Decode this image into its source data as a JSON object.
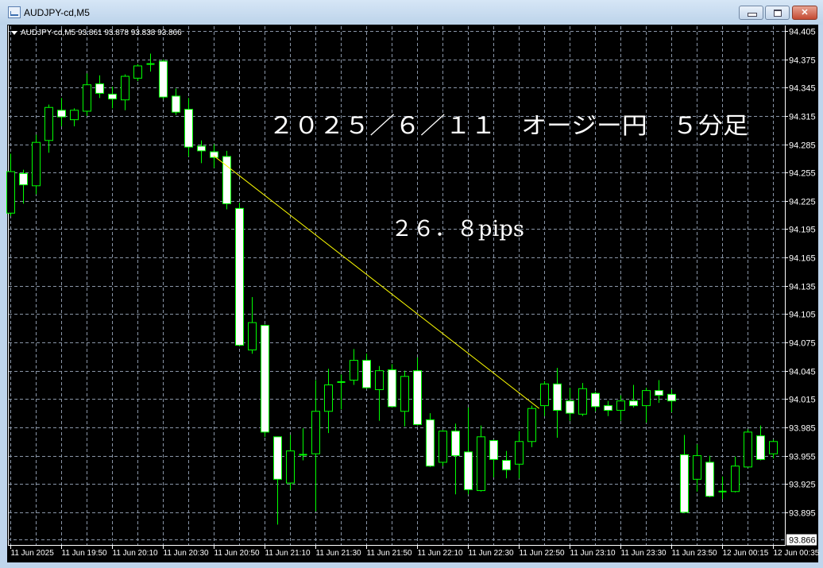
{
  "window": {
    "title": "AUDJPY-cd,M5",
    "icon": "chart-window-icon",
    "buttons": {
      "minimize": "minimize-icon",
      "maximize": "maximize-icon",
      "close": "close-icon"
    }
  },
  "colors": {
    "background": "#000000",
    "grid": "#8a96a8",
    "candle_outline": "#00ff00",
    "bull_body": "#000000",
    "bear_body": "#ffffff",
    "trendline": "#ffff00",
    "text": "#ffffff"
  },
  "info_line": {
    "symbol": "AUDJPY-cd,M5",
    "ohlc": "93.861 93.878 93.838 93.866"
  },
  "annotations": {
    "title": "２０２５／６／１１　オージー円　５分足",
    "pips": "２６．８pips"
  },
  "chart_data": {
    "type": "candlestick",
    "symbol": "AUDJPY-cd",
    "timeframe": "M5",
    "grid": true,
    "ylim": [
      93.866,
      94.405
    ],
    "y_ticks": [
      "94.405",
      "94.375",
      "94.345",
      "94.315",
      "94.285",
      "94.255",
      "94.225",
      "94.195",
      "94.165",
      "94.135",
      "94.105",
      "94.075",
      "94.045",
      "94.015",
      "93.985",
      "93.955",
      "93.925",
      "93.895"
    ],
    "current_price": "93.866",
    "x_ticks": [
      {
        "time": "19:30",
        "label": "11 Jun 2025"
      },
      {
        "time": "19:50",
        "label": "11 Jun 19:50"
      },
      {
        "time": "20:10",
        "label": "11 Jun 20:10"
      },
      {
        "time": "20:30",
        "label": "11 Jun 20:30"
      },
      {
        "time": "20:50",
        "label": "11 Jun 20:50"
      },
      {
        "time": "21:10",
        "label": "11 Jun 21:10"
      },
      {
        "time": "21:30",
        "label": "11 Jun 21:30"
      },
      {
        "time": "21:50",
        "label": "11 Jun 21:50"
      },
      {
        "time": "22:10",
        "label": "11 Jun 22:10"
      },
      {
        "time": "22:30",
        "label": "11 Jun 22:30"
      },
      {
        "time": "22:50",
        "label": "11 Jun 22:50"
      },
      {
        "time": "23:10",
        "label": "11 Jun 23:10"
      },
      {
        "time": "23:30",
        "label": "11 Jun 23:30"
      },
      {
        "time": "23:50",
        "label": "11 Jun 23:50"
      },
      {
        "time": "00:15",
        "label": "12 Jun 00:15"
      },
      {
        "time": "00:35",
        "label": "12 Jun 00:35"
      }
    ],
    "candle_fields": [
      "time",
      "open",
      "high",
      "low",
      "close"
    ],
    "candles": [
      [
        "19:30",
        94.212,
        94.275,
        94.209,
        94.256
      ],
      [
        "19:35",
        94.254,
        94.258,
        94.222,
        94.242
      ],
      [
        "19:40",
        94.241,
        94.295,
        94.232,
        94.287
      ],
      [
        "19:45",
        94.289,
        94.327,
        94.276,
        94.324
      ],
      [
        "19:50",
        94.321,
        94.334,
        94.304,
        94.314
      ],
      [
        "19:55",
        94.311,
        94.323,
        94.304,
        94.321
      ],
      [
        "20:00",
        94.32,
        94.36,
        94.315,
        94.348
      ],
      [
        "20:05",
        94.349,
        94.358,
        94.334,
        94.339
      ],
      [
        "20:10",
        94.338,
        94.346,
        94.323,
        94.333
      ],
      [
        "20:15",
        94.332,
        94.359,
        94.321,
        94.357
      ],
      [
        "20:20",
        94.355,
        94.37,
        94.352,
        94.368
      ],
      [
        "20:25",
        94.37,
        94.381,
        94.362,
        94.37
      ],
      [
        "20:30",
        94.373,
        94.375,
        94.333,
        94.335
      ],
      [
        "20:35",
        94.336,
        94.344,
        94.316,
        94.319
      ],
      [
        "20:40",
        94.322,
        94.334,
        94.272,
        94.282
      ],
      [
        "20:45",
        94.283,
        94.289,
        94.265,
        94.278
      ],
      [
        "20:50",
        94.277,
        94.285,
        94.26,
        94.271
      ],
      [
        "20:55",
        94.272,
        94.278,
        94.216,
        94.222
      ],
      [
        "21:00",
        94.217,
        94.223,
        94.071,
        94.072
      ],
      [
        "21:05",
        94.067,
        94.123,
        94.063,
        94.096
      ],
      [
        "21:10",
        94.093,
        94.094,
        93.975,
        93.98
      ],
      [
        "21:15",
        93.975,
        93.975,
        93.882,
        93.93
      ],
      [
        "21:20",
        93.926,
        93.977,
        93.919,
        93.96
      ],
      [
        "21:25",
        93.956,
        93.984,
        93.95,
        93.956
      ],
      [
        "21:30",
        93.957,
        94.035,
        93.896,
        94.002
      ],
      [
        "21:35",
        94.002,
        94.047,
        93.979,
        94.03
      ],
      [
        "21:40",
        94.032,
        94.041,
        94.004,
        94.033
      ],
      [
        "21:45",
        94.035,
        94.068,
        94.03,
        94.056
      ],
      [
        "21:50",
        94.056,
        94.063,
        94.026,
        94.027
      ],
      [
        "21:55",
        94.025,
        94.05,
        93.992,
        94.045
      ],
      [
        "22:00",
        94.046,
        94.052,
        94.006,
        94.007
      ],
      [
        "22:05",
        94.002,
        94.045,
        93.986,
        94.039
      ],
      [
        "22:10",
        94.045,
        94.059,
        93.987,
        93.988
      ],
      [
        "22:15",
        93.993,
        94.0,
        93.943,
        93.944
      ],
      [
        "22:20",
        93.948,
        93.982,
        93.944,
        93.981
      ],
      [
        "22:25",
        93.981,
        93.989,
        93.914,
        93.955
      ],
      [
        "22:30",
        93.959,
        94.006,
        93.914,
        93.919
      ],
      [
        "22:35",
        93.918,
        93.987,
        93.917,
        93.975
      ],
      [
        "22:40",
        93.971,
        93.972,
        93.932,
        93.951
      ],
      [
        "22:45",
        93.95,
        93.96,
        93.931,
        93.94
      ],
      [
        "22:50",
        93.946,
        93.981,
        93.931,
        93.97
      ],
      [
        "22:55",
        93.97,
        94.008,
        93.964,
        94.005
      ],
      [
        "23:00",
        94.008,
        94.034,
        93.997,
        94.031
      ],
      [
        "23:05",
        94.031,
        94.048,
        93.974,
        94.003
      ],
      [
        "23:10",
        94.013,
        94.027,
        93.992,
        94.0
      ],
      [
        "23:15",
        93.999,
        94.032,
        93.997,
        94.026
      ],
      [
        "23:20",
        94.021,
        94.023,
        94.002,
        94.007
      ],
      [
        "23:25",
        94.008,
        94.013,
        93.997,
        94.003
      ],
      [
        "23:30",
        94.003,
        94.019,
        93.992,
        94.013
      ],
      [
        "23:35",
        94.013,
        94.03,
        94.006,
        94.008
      ],
      [
        "23:40",
        94.008,
        94.027,
        93.99,
        94.024
      ],
      [
        "23:45",
        94.024,
        94.035,
        94.011,
        94.019
      ],
      [
        "23:50",
        94.02,
        94.025,
        94.001,
        94.013
      ],
      [
        "00:00",
        93.956,
        93.977,
        93.894,
        93.895
      ],
      [
        "00:05",
        93.93,
        93.967,
        93.917,
        93.955
      ],
      [
        "00:10",
        93.948,
        93.955,
        93.911,
        93.912
      ],
      [
        "00:15",
        93.917,
        93.933,
        93.909,
        93.917
      ],
      [
        "00:20",
        93.917,
        93.954,
        93.916,
        93.944
      ],
      [
        "00:25",
        93.943,
        93.983,
        93.943,
        93.98
      ],
      [
        "00:30",
        93.976,
        93.987,
        93.95,
        93.951
      ],
      [
        "00:35",
        93.957,
        93.972,
        93.952,
        93.97
      ]
    ],
    "trendline": {
      "from": {
        "time": "20:50",
        "price": 94.273
      },
      "to": {
        "time": "23:00",
        "price": 94.005
      }
    }
  }
}
